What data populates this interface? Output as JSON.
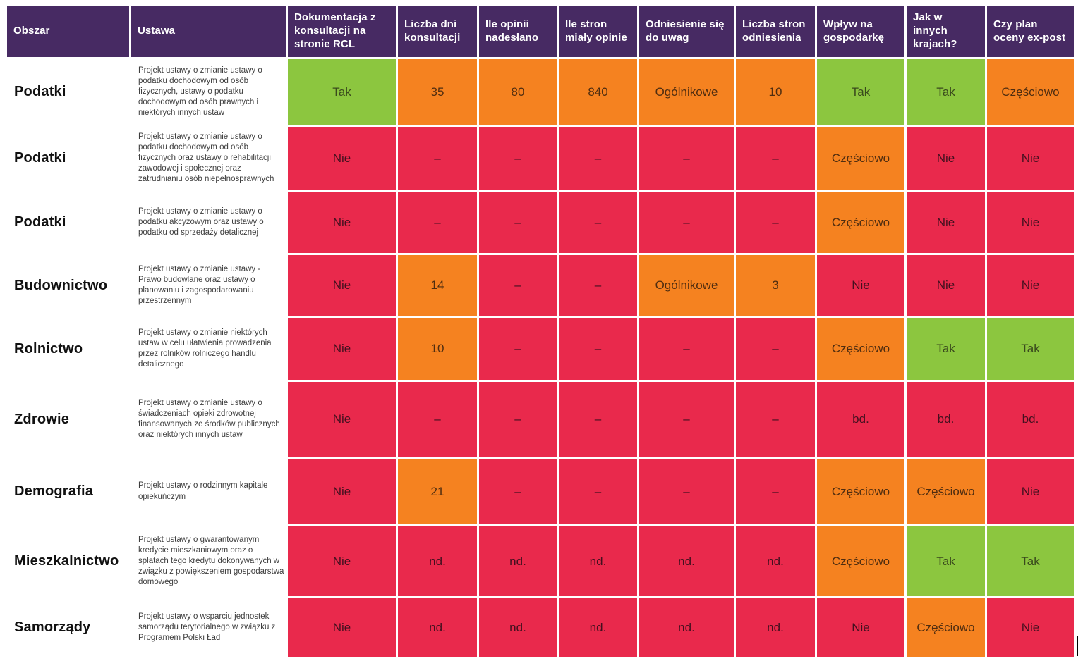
{
  "palette": {
    "header_bg": "#472a63",
    "header_text": "#ffffff",
    "green": "#8cc63f",
    "orange": "#f58220",
    "red": "#e9294c",
    "obszar_text": "#111111",
    "ustawa_text": "#3d3d3d"
  },
  "chart_data": {
    "type": "table",
    "columns": [
      "Obszar",
      "Ustawa",
      "Dokumentacja z konsultacji na stronie RCL",
      "Liczba dni konsultacji",
      "Ile opinii nadesłano",
      "Ile stron miały opinie",
      "Odniesienie się do uwag",
      "Liczba stron odniesienia",
      "Wpływ na gospodarkę",
      "Jak w innych krajach?",
      "Czy plan oceny ex-post"
    ],
    "rows": [
      {
        "obszar": "Podatki",
        "ustawa": "Projekt ustawy o zmianie ustawy o podatku dochodowym od osób fizycznych, ustawy o podatku dochodowym od osób prawnych i niektórych innych ustaw",
        "values": [
          {
            "text": "Tak",
            "status": "green"
          },
          {
            "text": "35",
            "status": "orange"
          },
          {
            "text": "80",
            "status": "orange"
          },
          {
            "text": "840",
            "status": "orange"
          },
          {
            "text": "Ogólnikowe",
            "status": "orange"
          },
          {
            "text": "10",
            "status": "orange"
          },
          {
            "text": "Tak",
            "status": "green"
          },
          {
            "text": "Tak",
            "status": "green"
          },
          {
            "text": "Częściowo",
            "status": "orange"
          }
        ]
      },
      {
        "obszar": "Podatki",
        "ustawa": "Projekt ustawy o zmianie ustawy o podatku dochodowym od osób fizycznych oraz ustawy o rehabilitacji zawodowej i społecznej oraz zatrudnianiu osób niepełnosprawnych",
        "values": [
          {
            "text": "Nie",
            "status": "red"
          },
          {
            "text": "–",
            "status": "red"
          },
          {
            "text": "–",
            "status": "red"
          },
          {
            "text": "–",
            "status": "red"
          },
          {
            "text": "–",
            "status": "red"
          },
          {
            "text": "–",
            "status": "red"
          },
          {
            "text": "Częściowo",
            "status": "orange"
          },
          {
            "text": "Nie",
            "status": "red"
          },
          {
            "text": "Nie",
            "status": "red"
          }
        ]
      },
      {
        "obszar": "Podatki",
        "ustawa": "Projekt ustawy o zmianie ustawy o podatku akcyzowym oraz ustawy o podatku od sprzedaży detalicznej",
        "values": [
          {
            "text": "Nie",
            "status": "red"
          },
          {
            "text": "–",
            "status": "red"
          },
          {
            "text": "–",
            "status": "red"
          },
          {
            "text": "–",
            "status": "red"
          },
          {
            "text": "–",
            "status": "red"
          },
          {
            "text": "–",
            "status": "red"
          },
          {
            "text": "Częściowo",
            "status": "orange"
          },
          {
            "text": "Nie",
            "status": "red"
          },
          {
            "text": "Nie",
            "status": "red"
          }
        ]
      },
      {
        "obszar": "Budownictwo",
        "ustawa": "Projekt ustawy o zmianie ustawy - Prawo budowlane oraz ustawy o planowaniu i zagospodarowaniu przestrzennym",
        "values": [
          {
            "text": "Nie",
            "status": "red"
          },
          {
            "text": "14",
            "status": "orange"
          },
          {
            "text": "–",
            "status": "red"
          },
          {
            "text": "–",
            "status": "red"
          },
          {
            "text": "Ogólnikowe",
            "status": "orange"
          },
          {
            "text": "3",
            "status": "orange"
          },
          {
            "text": "Nie",
            "status": "red"
          },
          {
            "text": "Nie",
            "status": "red"
          },
          {
            "text": "Nie",
            "status": "red"
          }
        ]
      },
      {
        "obszar": "Rolnictwo",
        "ustawa": "Projekt ustawy o zmianie niektórych ustaw w celu ułatwienia prowadzenia przez rolników rolniczego handlu detalicznego",
        "values": [
          {
            "text": "Nie",
            "status": "red"
          },
          {
            "text": "10",
            "status": "orange"
          },
          {
            "text": "–",
            "status": "red"
          },
          {
            "text": "–",
            "status": "red"
          },
          {
            "text": "–",
            "status": "red"
          },
          {
            "text": "–",
            "status": "red"
          },
          {
            "text": "Częściowo",
            "status": "orange"
          },
          {
            "text": "Tak",
            "status": "green"
          },
          {
            "text": "Tak",
            "status": "green"
          }
        ]
      },
      {
        "obszar": "Zdrowie",
        "ustawa": "Projekt ustawy o zmianie ustawy o świadczeniach opieki zdrowotnej finansowanych ze środków publicznych oraz niektórych innych ustaw",
        "values": [
          {
            "text": "Nie",
            "status": "red"
          },
          {
            "text": "–",
            "status": "red"
          },
          {
            "text": "–",
            "status": "red"
          },
          {
            "text": "–",
            "status": "red"
          },
          {
            "text": "–",
            "status": "red"
          },
          {
            "text": "–",
            "status": "red"
          },
          {
            "text": "bd.",
            "status": "red"
          },
          {
            "text": "bd.",
            "status": "red"
          },
          {
            "text": "bd.",
            "status": "red"
          }
        ]
      },
      {
        "obszar": "Demografia",
        "ustawa": "Projekt ustawy o rodzinnym kapitale opiekuńczym",
        "values": [
          {
            "text": "Nie",
            "status": "red"
          },
          {
            "text": "21",
            "status": "orange"
          },
          {
            "text": "–",
            "status": "red"
          },
          {
            "text": "–",
            "status": "red"
          },
          {
            "text": "–",
            "status": "red"
          },
          {
            "text": "–",
            "status": "red"
          },
          {
            "text": "Częściowo",
            "status": "orange"
          },
          {
            "text": "Częściowo",
            "status": "orange"
          },
          {
            "text": "Nie",
            "status": "red"
          }
        ]
      },
      {
        "obszar": "Mieszkalnictwo",
        "ustawa": "Projekt ustawy o gwarantowanym kredycie mieszkaniowym oraz o spłatach tego kredytu dokonywanych w związku z powiększeniem gospodarstwa domowego",
        "values": [
          {
            "text": "Nie",
            "status": "red"
          },
          {
            "text": "nd.",
            "status": "red"
          },
          {
            "text": "nd.",
            "status": "red"
          },
          {
            "text": "nd.",
            "status": "red"
          },
          {
            "text": "nd.",
            "status": "red"
          },
          {
            "text": "nd.",
            "status": "red"
          },
          {
            "text": "Częściowo",
            "status": "orange"
          },
          {
            "text": "Tak",
            "status": "green"
          },
          {
            "text": "Tak",
            "status": "green"
          }
        ]
      },
      {
        "obszar": "Samorządy",
        "ustawa": "Projekt ustawy o wsparciu jednostek samorządu terytorialnego w związku z Programem Polski Ład",
        "values": [
          {
            "text": "Nie",
            "status": "red"
          },
          {
            "text": "nd.",
            "status": "red"
          },
          {
            "text": "nd.",
            "status": "red"
          },
          {
            "text": "nd.",
            "status": "red"
          },
          {
            "text": "nd.",
            "status": "red"
          },
          {
            "text": "nd.",
            "status": "red"
          },
          {
            "text": "Nie",
            "status": "red"
          },
          {
            "text": "Częściowo",
            "status": "orange"
          },
          {
            "text": "Nie",
            "status": "red"
          }
        ]
      }
    ]
  }
}
